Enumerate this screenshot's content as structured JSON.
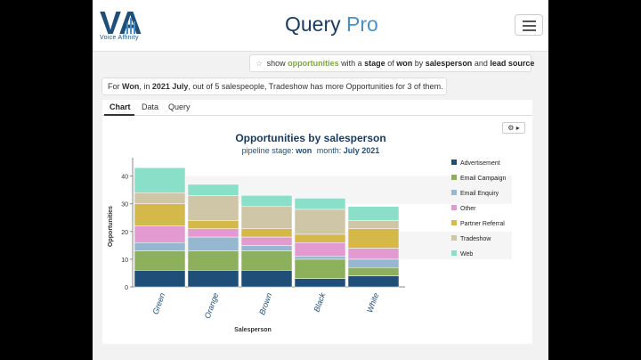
{
  "header": {
    "logo_text": "VA",
    "logo_sub": "Voice Affinity",
    "brand": "Query",
    "brand_suffix": "Pro"
  },
  "query": {
    "parts": [
      "show",
      "opportunities",
      "with a",
      "stage",
      "of",
      "won",
      "by",
      "salesperson",
      "and",
      "lead source"
    ]
  },
  "answer": {
    "prefix": "For",
    "stage": "Won",
    "mid1": ", in",
    "period": "2021 July",
    "suffix": ", out of 5 salespeople, Tradeshow has more Opportunities for 3 of them."
  },
  "tabs": [
    "Chart",
    "Data",
    "Query"
  ],
  "active_tab": "Chart",
  "colors": {
    "Advertisement": "#1f4e79",
    "Email Campaign": "#8db05a",
    "Email Enquiry": "#95b7cf",
    "Other": "#e39ad0",
    "Partner Referral": "#d4b84a",
    "Tradeshow": "#cfc6a8",
    "Web": "#8adfc8"
  },
  "chart_data": {
    "type": "bar",
    "stacked": true,
    "title": "Opportunities by salesperson",
    "subtitle_parts": [
      "pipeline stage:",
      "won",
      "month:",
      "July 2021"
    ],
    "xlabel": "Salesperson",
    "ylabel": "Opportunities",
    "ylim": [
      0,
      45
    ],
    "yticks": [
      0,
      10,
      20,
      30,
      40
    ],
    "categories": [
      "Green",
      "Orange",
      "Brown",
      "Black",
      "White"
    ],
    "series": [
      {
        "name": "Advertisement",
        "values": [
          6,
          6,
          6,
          3,
          4
        ]
      },
      {
        "name": "Email Campaign",
        "values": [
          7,
          7,
          7,
          7,
          3
        ]
      },
      {
        "name": "Email Enquiry",
        "values": [
          3,
          5,
          2,
          1,
          3
        ]
      },
      {
        "name": "Other",
        "values": [
          6,
          3,
          3,
          5,
          4
        ]
      },
      {
        "name": "Partner Referral",
        "values": [
          8,
          3,
          3,
          3,
          7
        ]
      },
      {
        "name": "Tradeshow",
        "values": [
          4,
          9,
          8,
          9,
          3
        ]
      },
      {
        "name": "Web",
        "values": [
          9,
          4,
          4,
          4,
          5
        ]
      }
    ],
    "legend_position": "right"
  }
}
